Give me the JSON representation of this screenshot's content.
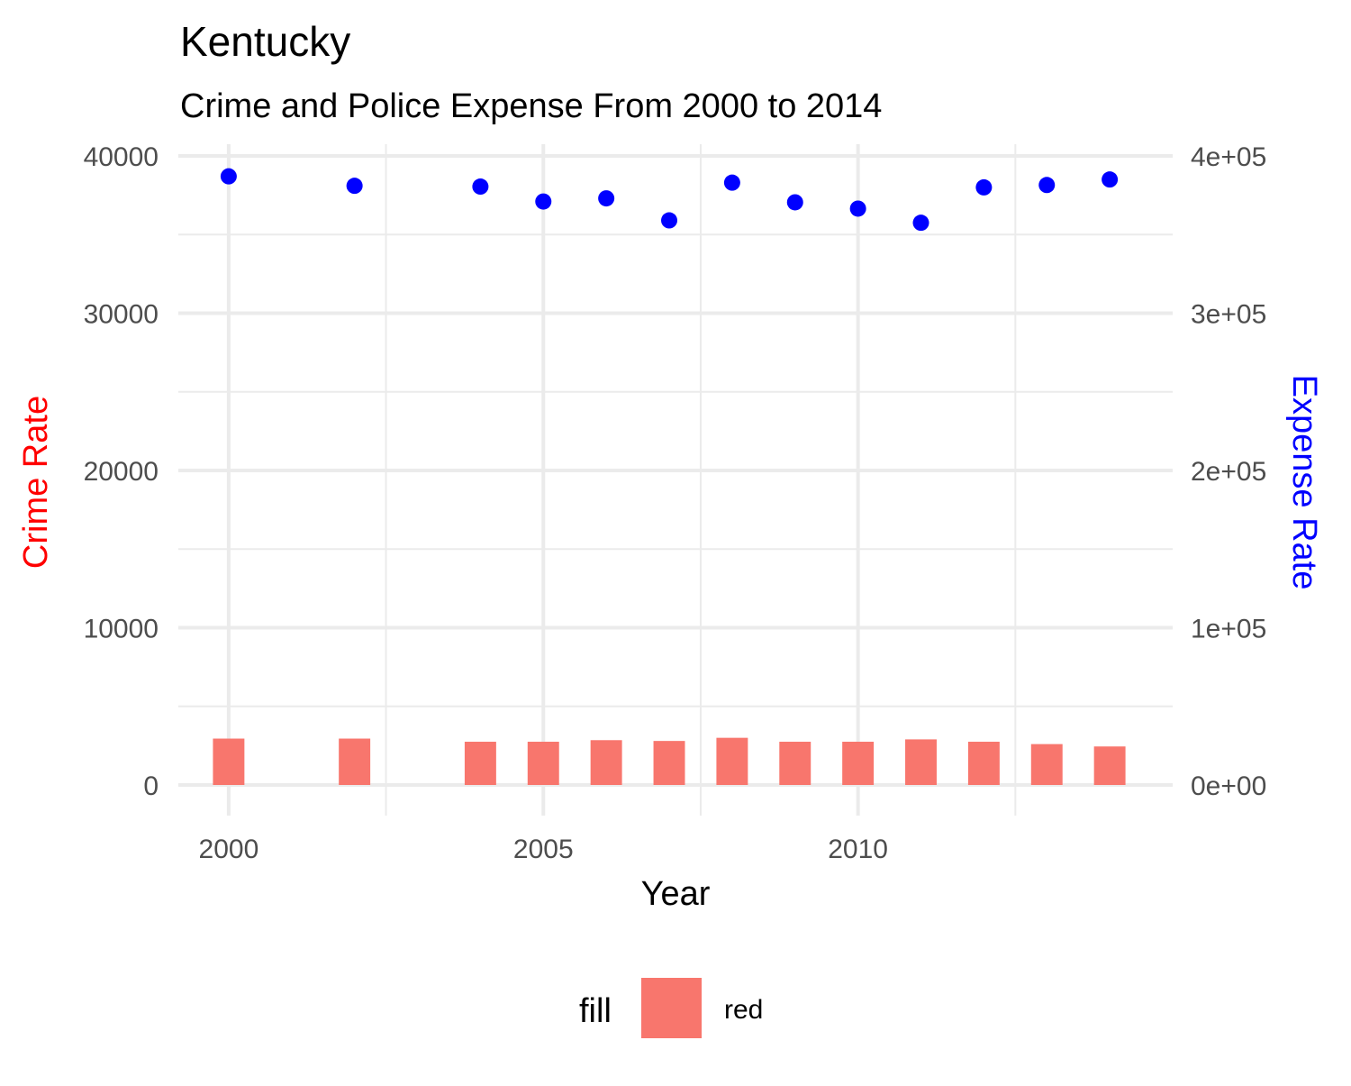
{
  "chart_data": {
    "type": "bar",
    "title": "Kentucky",
    "subtitle": "Crime and Police Expense From 2000 to 2014",
    "xlabel": "Year",
    "ylabel_left": "Crime Rate",
    "ylabel_right": "Expense Rate",
    "x_ticks": [
      "2000",
      "2005",
      "2010"
    ],
    "x_tick_values": [
      2000,
      2005,
      2010
    ],
    "y_left_ticks": [
      "0",
      "10000",
      "20000",
      "30000",
      "40000"
    ],
    "y_left_tick_values": [
      0,
      10000,
      20000,
      30000,
      40000
    ],
    "y_right_ticks": [
      "0e+00",
      "1e+05",
      "2e+05",
      "3e+05",
      "4e+05"
    ],
    "y_right_tick_values": [
      0,
      100000,
      200000,
      300000,
      400000
    ],
    "xlim": [
      1999.2,
      2015.0
    ],
    "ylim_left": [
      0,
      40000
    ],
    "ylim_right": [
      0,
      400000
    ],
    "grid": true,
    "legend_position": "bottom",
    "colors": {
      "bars": "#F8766D",
      "points": "#0000FF",
      "ylabel_left": "#FF0000",
      "ylabel_right": "#0000FF",
      "grid": "#EBEBEB"
    },
    "series": [
      {
        "kind": "bar",
        "axis": "left",
        "x": [
          2000,
          2002,
          2004,
          2005,
          2006,
          2007,
          2008,
          2009,
          2010,
          2011,
          2012,
          2013,
          2014
        ],
        "values": [
          2950,
          2950,
          2750,
          2750,
          2850,
          2800,
          3000,
          2750,
          2750,
          2900,
          2750,
          2600,
          2450
        ]
      },
      {
        "kind": "scatter",
        "axis": "right",
        "x": [
          2000,
          2002,
          2004,
          2005,
          2006,
          2007,
          2008,
          2009,
          2010,
          2011,
          2012,
          2013,
          2014
        ],
        "values": [
          387000,
          381000,
          380500,
          371000,
          373000,
          359000,
          383000,
          370500,
          366500,
          357500,
          380000,
          381500,
          385000
        ]
      }
    ],
    "legend": {
      "title": "fill",
      "label": "red"
    }
  }
}
